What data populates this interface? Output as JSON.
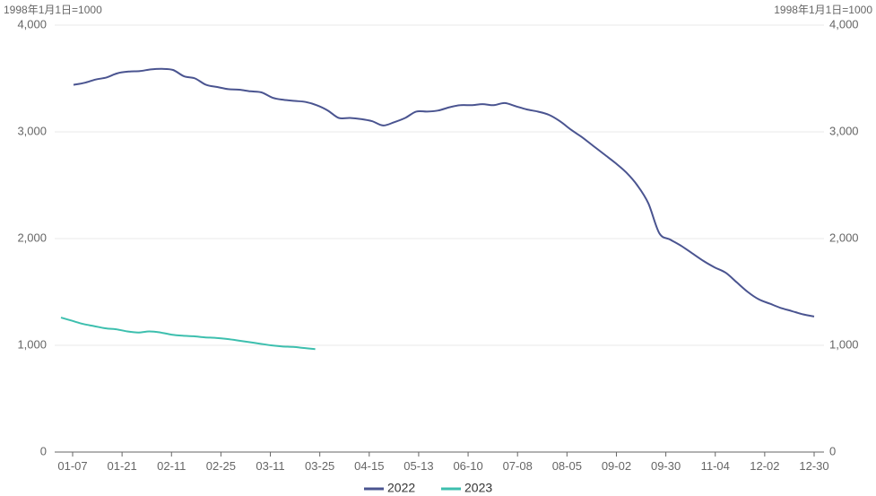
{
  "chart_data": {
    "type": "line",
    "unit_label": "1998年1月1日=1000",
    "yticks": [
      "0",
      "1,000",
      "2,000",
      "3,000",
      "4,000"
    ],
    "ylim": [
      0,
      4000
    ],
    "xtick_labels": [
      "01-07",
      "01-21",
      "02-11",
      "02-25",
      "03-11",
      "03-25",
      "04-15",
      "05-13",
      "06-10",
      "07-08",
      "08-05",
      "09-02",
      "09-30",
      "11-04",
      "12-02",
      "12-30"
    ],
    "legend_position": "bottom-center",
    "series": [
      {
        "name": "2022",
        "color": "#4a5490",
        "values": [
          3440,
          3460,
          3490,
          3510,
          3550,
          3565,
          3570,
          3585,
          3590,
          3580,
          3520,
          3500,
          3440,
          3420,
          3400,
          3395,
          3380,
          3370,
          3320,
          3300,
          3290,
          3280,
          3250,
          3200,
          3130,
          3130,
          3120,
          3100,
          3060,
          3090,
          3130,
          3190,
          3190,
          3200,
          3230,
          3250,
          3250,
          3260,
          3250,
          3270,
          3240,
          3210,
          3190,
          3160,
          3100,
          3020,
          2950,
          2870,
          2790,
          2710,
          2620,
          2500,
          2330,
          2050,
          1990,
          1930,
          1860,
          1790,
          1730,
          1680,
          1590,
          1500,
          1430,
          1390,
          1350,
          1320,
          1290,
          1270
        ]
      },
      {
        "name": "2023",
        "color": "#3dbfae",
        "values": [
          1260,
          1230,
          1200,
          1180,
          1160,
          1150,
          1130,
          1120,
          1130,
          1120,
          1100,
          1090,
          1085,
          1075,
          1070,
          1060,
          1045,
          1030,
          1015,
          1000,
          990,
          985,
          975,
          965
        ]
      }
    ]
  }
}
